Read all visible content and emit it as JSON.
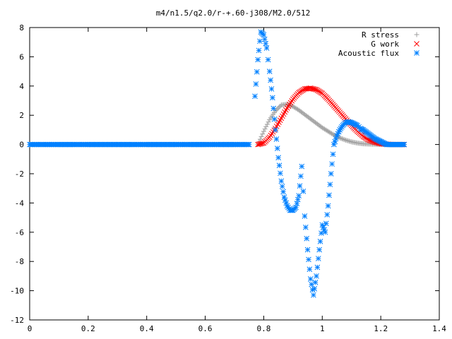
{
  "chart_data": {
    "type": "scatter",
    "title": "m4/n1.5/q2.0/r-+.60-j308/M2.0/512",
    "xlabel": "",
    "ylabel": "",
    "xlim": [
      0,
      1.4
    ],
    "ylim": [
      -12,
      8
    ],
    "xticks": [
      0,
      0.2,
      0.4,
      0.6,
      0.8,
      1,
      1.2,
      1.4
    ],
    "xtick_labels": [
      "0",
      "0.2",
      "0.4",
      "0.6",
      "0.8",
      "1",
      "1.2",
      "1.4"
    ],
    "yticks": [
      -12,
      -10,
      -8,
      -6,
      -4,
      -2,
      0,
      2,
      4,
      6,
      8
    ],
    "ytick_labels": [
      "-12",
      "-10",
      "-8",
      "-6",
      "-4",
      "-2",
      "0",
      "2",
      "4",
      "6",
      "8"
    ],
    "grid": false,
    "legend_position": "top-right",
    "series": [
      {
        "name": "R stress",
        "marker": "plus",
        "color": "#a0a0a0",
        "x": [
          0.78,
          0.8,
          0.82,
          0.84,
          0.86,
          0.88,
          0.9,
          0.92,
          0.94,
          0.96,
          0.98,
          1.0,
          1.02,
          1.04,
          1.06,
          1.08,
          1.1,
          1.12,
          1.14,
          1.16,
          1.18,
          1.2,
          1.22,
          1.24,
          1.26,
          1.28
        ],
        "y": [
          0.0,
          0.9,
          1.7,
          2.3,
          2.7,
          2.75,
          2.6,
          2.35,
          2.05,
          1.75,
          1.45,
          1.15,
          0.9,
          0.65,
          0.45,
          0.3,
          0.18,
          0.1,
          0.05,
          0.03,
          0.02,
          0.01,
          0.0,
          0.0,
          0.0,
          0.0
        ]
      },
      {
        "name": "G work",
        "marker": "cross",
        "color": "#ff0000",
        "x": [
          0.78,
          0.8,
          0.82,
          0.84,
          0.86,
          0.88,
          0.9,
          0.92,
          0.94,
          0.96,
          0.98,
          1.0,
          1.02,
          1.04,
          1.06,
          1.08,
          1.1,
          1.12,
          1.14,
          1.16,
          1.18,
          1.2,
          1.22,
          1.24,
          1.26,
          1.28
        ],
        "y": [
          0.0,
          0.1,
          0.5,
          1.1,
          1.8,
          2.5,
          3.1,
          3.55,
          3.8,
          3.85,
          3.75,
          3.5,
          3.1,
          2.65,
          2.2,
          1.75,
          1.3,
          0.9,
          0.55,
          0.3,
          0.15,
          0.05,
          0.02,
          0.0,
          0.0,
          0.0
        ]
      },
      {
        "name": "Acoustic flux",
        "marker": "star",
        "color": "#0080ff",
        "x": [
          0.77,
          0.78,
          0.79,
          0.8,
          0.81,
          0.82,
          0.83,
          0.84,
          0.85,
          0.86,
          0.87,
          0.88,
          0.89,
          0.9,
          0.91,
          0.92,
          0.93,
          0.94,
          0.95,
          0.96,
          0.97,
          0.98,
          0.99,
          1.0,
          1.01,
          1.02,
          1.03,
          1.04,
          1.05,
          1.06,
          1.07,
          1.08,
          1.09,
          1.1,
          1.11,
          1.12,
          1.13,
          1.14,
          1.15,
          1.16,
          1.17,
          1.18,
          1.19,
          1.2,
          1.21,
          1.22,
          1.23,
          1.24,
          1.25,
          1.26,
          1.27,
          1.28
        ],
        "y": [
          3.3,
          5.8,
          7.7,
          7.5,
          6.6,
          5.0,
          3.2,
          1.0,
          -0.9,
          -2.5,
          -3.6,
          -4.2,
          -4.5,
          -4.5,
          -4.3,
          -3.5,
          -1.5,
          -4.9,
          -7.2,
          -9.2,
          -10.3,
          -9.0,
          -7.2,
          -5.5,
          -6.0,
          -4.2,
          -2.0,
          0.0,
          0.6,
          1.0,
          1.3,
          1.5,
          1.55,
          1.5,
          1.4,
          1.3,
          1.1,
          1.0,
          0.85,
          0.7,
          0.55,
          0.4,
          0.3,
          0.2,
          0.1,
          0.0,
          0.0,
          0.0,
          0.0,
          0.0,
          0.0,
          0.0
        ]
      },
      {
        "name": "",
        "marker": "star",
        "color": "#0080ff",
        "x": [
          0.0,
          0.05,
          0.1,
          0.15,
          0.2,
          0.25,
          0.3,
          0.35,
          0.4,
          0.45,
          0.5,
          0.55,
          0.6,
          0.65,
          0.7,
          0.75
        ],
        "y": [
          0,
          0,
          0,
          0,
          0,
          0,
          0,
          0,
          0,
          0,
          0,
          0,
          0,
          0,
          0,
          0
        ]
      }
    ]
  }
}
